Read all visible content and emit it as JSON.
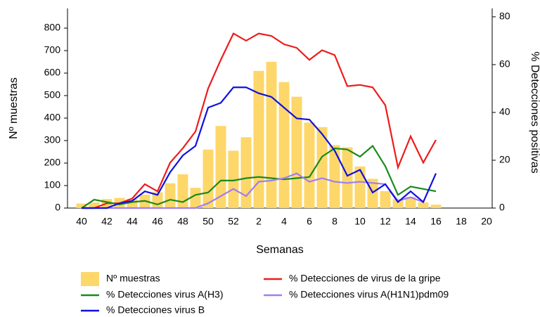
{
  "chart_data": {
    "type": "bar",
    "x_label": "Semanas",
    "y_label": "Nº muestras",
    "y2_label": "% Detecciones positivas",
    "categories": [
      "40",
      null,
      "42",
      null,
      "44",
      null,
      "46",
      null,
      "48",
      null,
      "50",
      null,
      "52",
      null,
      "2",
      null,
      "4",
      null,
      "6",
      null,
      "8",
      null,
      "10",
      null,
      "12",
      null,
      "14",
      null,
      "16",
      null,
      "18",
      null,
      "20"
    ],
    "ylim": [
      0,
      887.5
    ],
    "yticks": [
      0,
      100,
      200,
      300,
      400,
      500,
      600,
      700,
      800
    ],
    "y2lim": [
      0,
      83.5
    ],
    "y2ticks": [
      0,
      20,
      40,
      60,
      80
    ],
    "grid": false,
    "series": [
      {
        "name": "Nº muestras",
        "type": "bar",
        "color": "#fdd76a",
        "values": [
          20,
          25,
          40,
          45,
          40,
          60,
          70,
          110,
          150,
          90,
          260,
          365,
          255,
          315,
          610,
          650,
          560,
          495,
          380,
          360,
          280,
          270,
          185,
          130,
          75,
          40,
          50,
          25,
          15,
          null,
          null,
          null,
          null
        ]
      },
      {
        "name": "% Detecciones de virus de la gripe",
        "type": "line",
        "axis": "y2",
        "color": "#ee1c1c",
        "values": [
          0,
          0,
          2,
          2,
          4,
          10,
          7,
          19,
          25,
          32,
          50,
          62,
          73,
          70,
          73,
          72,
          68.5,
          67,
          62,
          66,
          64,
          51,
          51.5,
          50.5,
          43,
          17,
          30,
          19,
          28.5,
          null,
          null,
          null,
          null
        ]
      },
      {
        "name": "% Detecciones virus A(H3)",
        "type": "line",
        "axis": "y2",
        "color": "#1a8a1a",
        "values": [
          0,
          3.5,
          2.5,
          1.5,
          2.5,
          3,
          1.5,
          3.5,
          2.5,
          5.5,
          6.5,
          11.5,
          11.5,
          12.5,
          13,
          12.5,
          12,
          12.5,
          13,
          21.5,
          25,
          24.5,
          21.5,
          26,
          17.5,
          5.5,
          9,
          8,
          7,
          null,
          null,
          null,
          null
        ]
      },
      {
        "name": "% Detecciones virus A(H1N1)pdm09",
        "type": "line",
        "axis": "y2",
        "color": "#a07ef0",
        "values": [
          0,
          0,
          0,
          0,
          0,
          0,
          0,
          0,
          0,
          0,
          2,
          5,
          8,
          5,
          11,
          11.5,
          12.5,
          14.5,
          11,
          12.5,
          11,
          10.5,
          11,
          10.5,
          10,
          3,
          4.5,
          2.5,
          null,
          null,
          null,
          null,
          null
        ]
      },
      {
        "name": "% Detecciones virus B",
        "type": "line",
        "axis": "y2",
        "color": "#1010e0",
        "values": [
          0,
          0,
          0,
          2,
          3,
          7,
          5.5,
          15,
          22,
          26,
          42,
          44,
          50.5,
          50.5,
          48,
          46.5,
          42,
          37.5,
          37,
          31,
          24,
          13.5,
          16,
          6.5,
          10,
          2.5,
          7,
          2.5,
          14.5,
          null,
          null,
          null,
          null
        ]
      }
    ]
  }
}
